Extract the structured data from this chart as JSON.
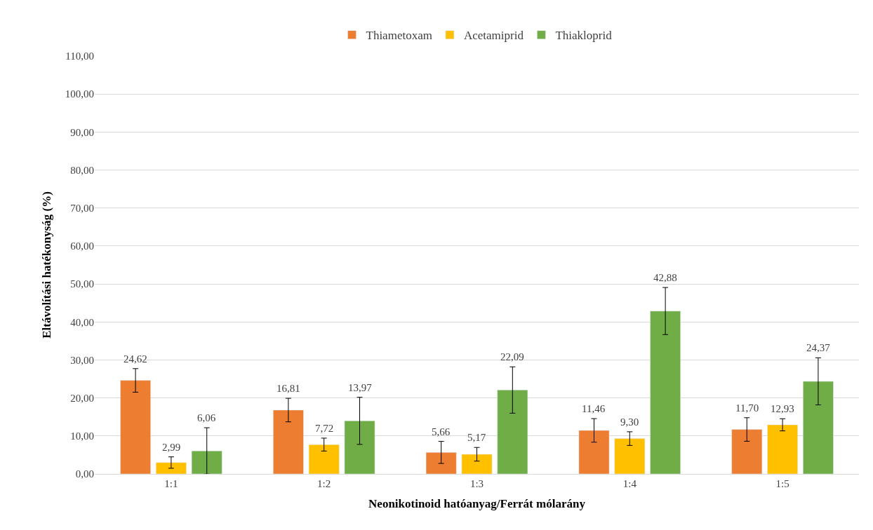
{
  "chart_data": {
    "type": "bar",
    "xlabel": "Neonikotinoid hatóanyag/Ferrát mólarány",
    "ylabel": "Eltávolítási hatékonyság (%)",
    "categories": [
      "1:1",
      "1:2",
      "1:3",
      "1:4",
      "1:5"
    ],
    "series": [
      {
        "name": "Thiametoxam",
        "color": "#ed7d31",
        "values": [
          24.62,
          16.81,
          5.66,
          11.46,
          11.7
        ],
        "value_labels": [
          "24,62",
          "16,81",
          "5,66",
          "11,46",
          "11,70"
        ],
        "errors": [
          3.1,
          3.1,
          2.9,
          3.1,
          3.1
        ]
      },
      {
        "name": "Acetamiprid",
        "color": "#ffc000",
        "values": [
          2.99,
          7.72,
          5.17,
          9.3,
          12.93
        ],
        "value_labels": [
          "2,99",
          "7,72",
          "5,17",
          "9,30",
          "12,93"
        ],
        "errors": [
          1.5,
          1.7,
          1.8,
          1.8,
          1.6
        ]
      },
      {
        "name": "Thiakloprid",
        "color": "#70ad47",
        "values": [
          6.06,
          13.97,
          22.09,
          42.88,
          24.37
        ],
        "value_labels": [
          "6,06",
          "13,97",
          "22,09",
          "42,88",
          "24,37"
        ],
        "errors": [
          6.1,
          6.2,
          6.1,
          6.2,
          6.2
        ]
      }
    ],
    "ylim": [
      0,
      110
    ],
    "yticks": [
      {
        "value": 0,
        "label": "0,00"
      },
      {
        "value": 10,
        "label": "10,00"
      },
      {
        "value": 20,
        "label": "20,00"
      },
      {
        "value": 30,
        "label": "30,00"
      },
      {
        "value": 40,
        "label": "40,00"
      },
      {
        "value": 50,
        "label": "50,00"
      },
      {
        "value": 60,
        "label": "60,00"
      },
      {
        "value": 70,
        "label": "70,00"
      },
      {
        "value": 80,
        "label": "80,00"
      },
      {
        "value": 90,
        "label": "90,00"
      },
      {
        "value": 100,
        "label": "100,00"
      },
      {
        "value": 110,
        "label": "110,00"
      }
    ],
    "grid": "y",
    "legend": "top"
  }
}
